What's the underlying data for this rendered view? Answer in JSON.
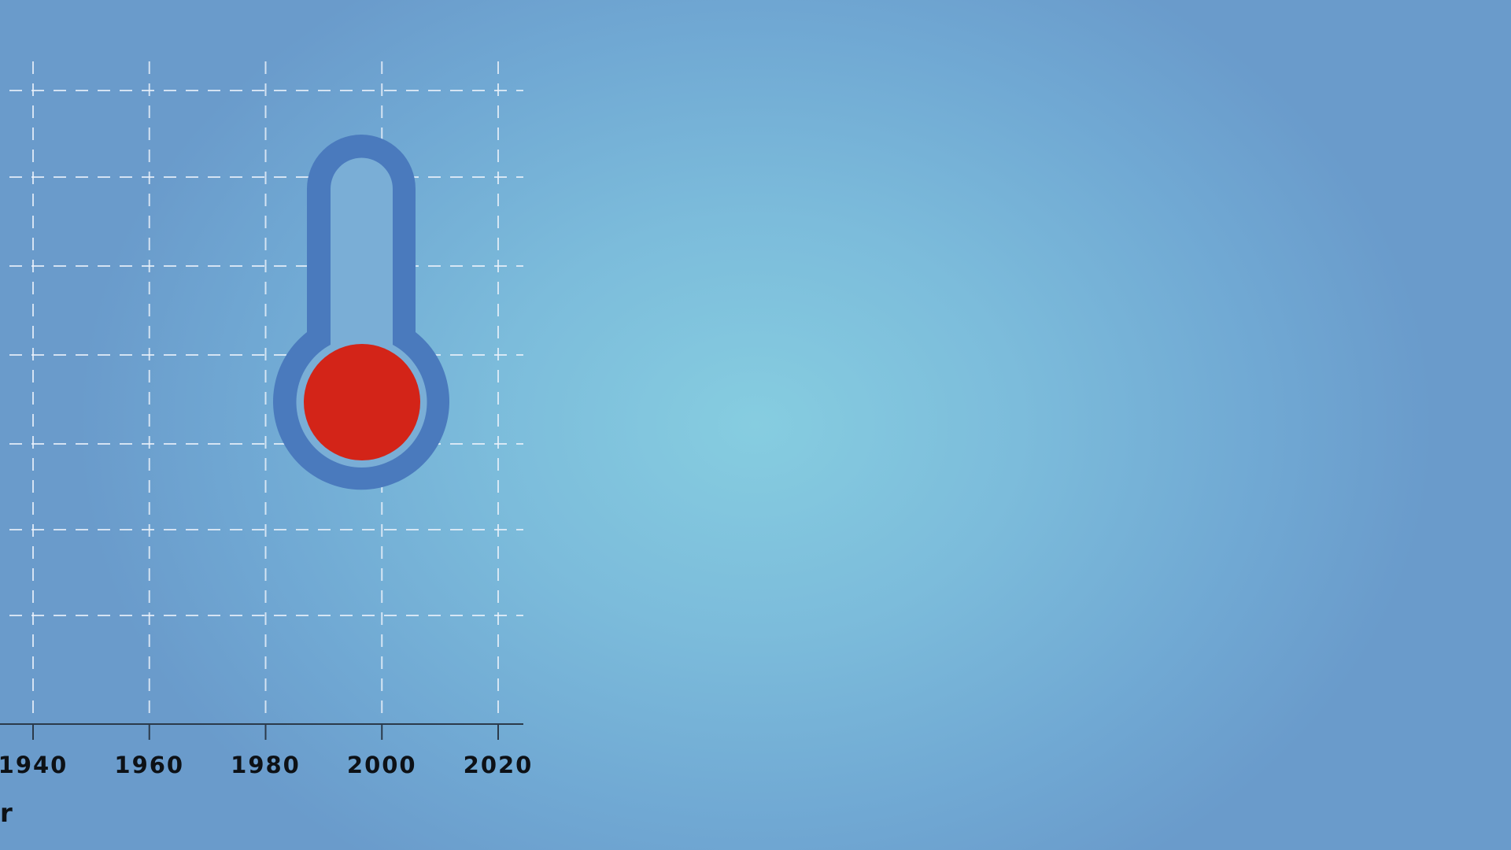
{
  "chart_data": {
    "type": "line",
    "xlabel": "r",
    "x_ticks": [
      1940,
      1960,
      1980,
      2000,
      2020
    ],
    "xlim": [
      1934,
      2025
    ],
    "grid": true,
    "series": []
  },
  "illustration": {
    "name": "thermometer",
    "outline_color": "#4a7abd",
    "bulb_fill_color": "#d32418"
  },
  "colors": {
    "background_center": "#86cde0",
    "background_edge": "#6a9bcb",
    "grid": "#ebf2fa",
    "axis": "#2b3a4a",
    "text": "#0d1116"
  }
}
